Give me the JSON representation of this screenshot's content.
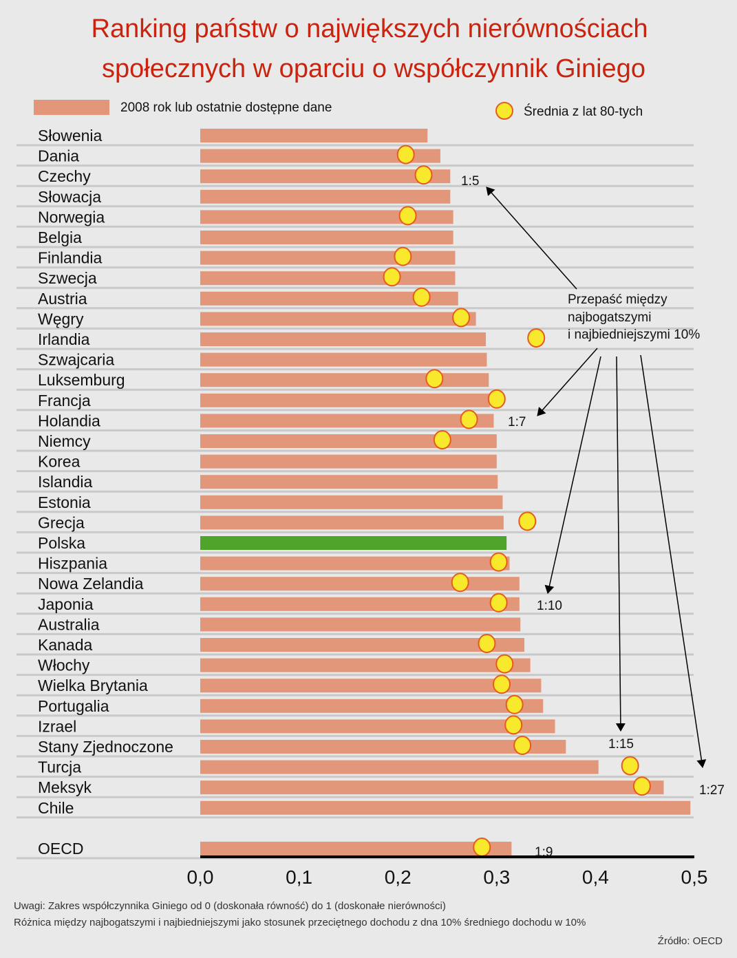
{
  "chart_data": {
    "type": "bar",
    "orientation": "horizontal",
    "title": "Ranking państw o największych nierównościach społecznych w oparciu o współczynnik Giniego",
    "title_lines": [
      "Ranking państw o największych nierównościach",
      "społecznych w oparciu o współczynnik Giniego"
    ],
    "categories": [
      "Słowenia",
      "Dania",
      "Czechy",
      "Słowacja",
      "Norwegia",
      "Belgia",
      "Finlandia",
      "Szwecja",
      "Austria",
      "Węgry",
      "Irlandia",
      "Szwajcaria",
      "Luksemburg",
      "Francja",
      "Holandia",
      "Niemcy",
      "Korea",
      "Islandia",
      "Estonia",
      "Grecja",
      "Polska",
      "Hiszpania",
      "Nowa Zelandia",
      "Japonia",
      "Australia",
      "Kanada",
      "Włochy",
      "Wielka Brytania",
      "Portugalia",
      "Izrael",
      "Stany Zjednoczone",
      "Turcja",
      "Meksyk",
      "Chile",
      "OECD"
    ],
    "series": [
      {
        "name": "2008 rok lub ostatnie dostępne dane",
        "type": "bar",
        "values": [
          0.23,
          0.243,
          0.253,
          0.253,
          0.256,
          0.256,
          0.258,
          0.258,
          0.261,
          0.279,
          0.289,
          0.29,
          0.292,
          0.293,
          0.297,
          0.3,
          0.3,
          0.301,
          0.306,
          0.307,
          0.31,
          0.313,
          0.323,
          0.323,
          0.324,
          0.328,
          0.334,
          0.345,
          0.347,
          0.359,
          0.37,
          0.403,
          0.469,
          0.496,
          0.315
        ]
      },
      {
        "name": "Średnia z lat 80-tych",
        "type": "point",
        "values": [
          null,
          0.208,
          0.226,
          null,
          0.21,
          null,
          0.205,
          0.194,
          0.224,
          0.264,
          0.34,
          null,
          0.237,
          0.3,
          0.272,
          0.245,
          null,
          null,
          null,
          0.331,
          null,
          0.302,
          0.263,
          0.302,
          null,
          0.29,
          0.308,
          0.305,
          0.318,
          0.317,
          0.326,
          0.435,
          0.447,
          null,
          0.285
        ]
      }
    ],
    "highlight": "Polska",
    "xlim": [
      0,
      0.5
    ],
    "xticks": [
      "0,0",
      "0,1",
      "0,2",
      "0,3",
      "0,4",
      "0,5"
    ],
    "legend_placement": "top",
    "annotation": {
      "lines": [
        "Przepaść między",
        "najbogatszymi",
        "i najbiedniejszymi 10%"
      ],
      "ratios": [
        {
          "label": "1:5",
          "country": "Czechy"
        },
        {
          "label": "1:7",
          "country": "Holandia"
        },
        {
          "label": "1:10",
          "country": "Japonia"
        },
        {
          "label": "1:15",
          "country": "Stany Zjednoczone"
        },
        {
          "label": "1:27",
          "country": "Meksyk"
        },
        {
          "label": "1:9",
          "country": "OECD"
        }
      ]
    },
    "colors": {
      "bar": "#e2977a",
      "highlight": "#4fa52c",
      "dot_fill": "#f8e92c",
      "dot_stroke": "#e8591e",
      "title": "#c8240f"
    }
  },
  "notes": [
    "Uwagi: Zakres współczynnika Giniego od 0 (doskonała równość) do 1 (doskonałe nierówności)",
    "Różnica między najbogatszymi i najbiedniejszymi jako stosunek przeciętnego dochodu z dna 10% średniego dochodu w 10%"
  ],
  "source": "Źródło: OECD"
}
